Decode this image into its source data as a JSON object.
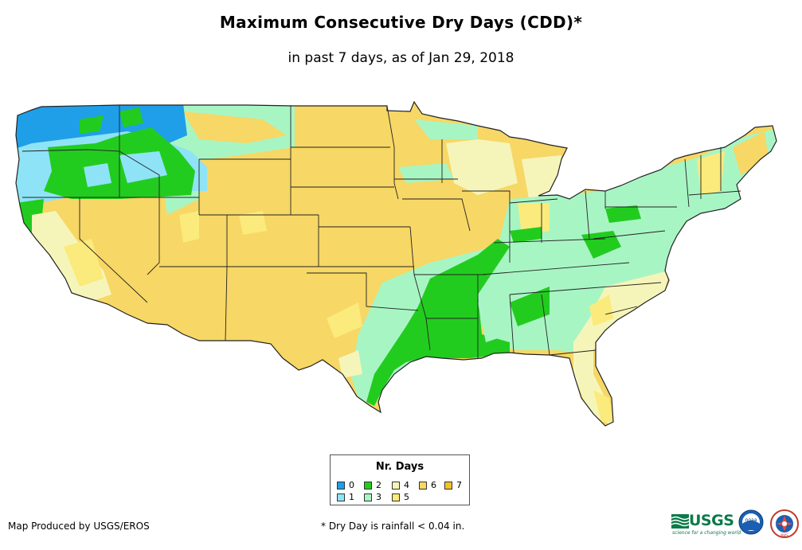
{
  "title": "Maximum Consecutive Dry Days (CDD)*",
  "subtitle": "in past 7 days, as of Jan 29, 2018",
  "legend": {
    "title": "Nr. Days",
    "items": [
      {
        "label": "0",
        "color": "#1f9fe8"
      },
      {
        "label": "1",
        "color": "#8fe3f7"
      },
      {
        "label": "2",
        "color": "#22cc1f"
      },
      {
        "label": "3",
        "color": "#a8f5c4"
      },
      {
        "label": "4",
        "color": "#f6f5b9"
      },
      {
        "label": "5",
        "color": "#fbea7c"
      },
      {
        "label": "6",
        "color": "#f7d765"
      },
      {
        "label": "7",
        "color": "#f5c12b"
      }
    ]
  },
  "credit": "Map Produced by USGS/EROS",
  "footnote": "* Dry Day is rainfall < 0.04 in.",
  "logos": {
    "usgs": "USGS",
    "usgs_tagline": "science for a changing world",
    "noaa": "noaa",
    "nws": "NWS",
    "icons": [
      "usgs-logo",
      "noaa-seal",
      "nws-seal"
    ]
  }
}
